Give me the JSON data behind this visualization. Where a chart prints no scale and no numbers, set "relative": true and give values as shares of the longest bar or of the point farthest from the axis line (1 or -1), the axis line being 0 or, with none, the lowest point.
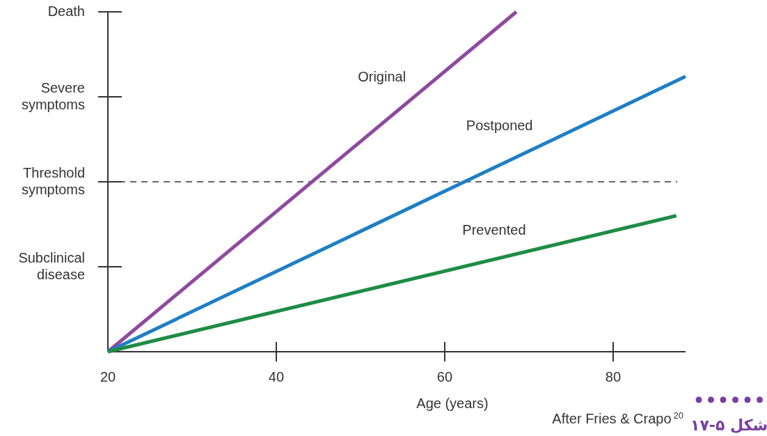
{
  "chart_data": {
    "type": "line",
    "xlabel": "Age (years)",
    "relative": true,
    "xlim": [
      20,
      88.6
    ],
    "xticks": [
      20,
      40,
      60,
      80
    ],
    "series": [
      {
        "name": "Original",
        "color": "#8e4a9e",
        "x": [
          20,
          68.5
        ],
        "values": [
          0,
          1
        ]
      },
      {
        "name": "Postponed",
        "color": "#1f7fc4",
        "x": [
          20,
          88.6
        ],
        "values": [
          0,
          0.81
        ]
      },
      {
        "name": "Prevented",
        "color": "#1e8c45",
        "x": [
          20,
          87.5
        ],
        "values": [
          0,
          0.4
        ]
      }
    ],
    "ref_lines": [
      {
        "axis": "y",
        "value": 0.5,
        "color": "#333333",
        "line_style": "dashed"
      }
    ],
    "annotations": [
      "Subclinical\ndisease",
      "Threshold\nsymptoms",
      "Severe\nsymptoms",
      "Death",
      "After Fries & Crapo$^{20}$",
      "شکل ۵-۱۷"
    ],
    "grid": false,
    "marker": "none",
    "line_style": "solid"
  }
}
